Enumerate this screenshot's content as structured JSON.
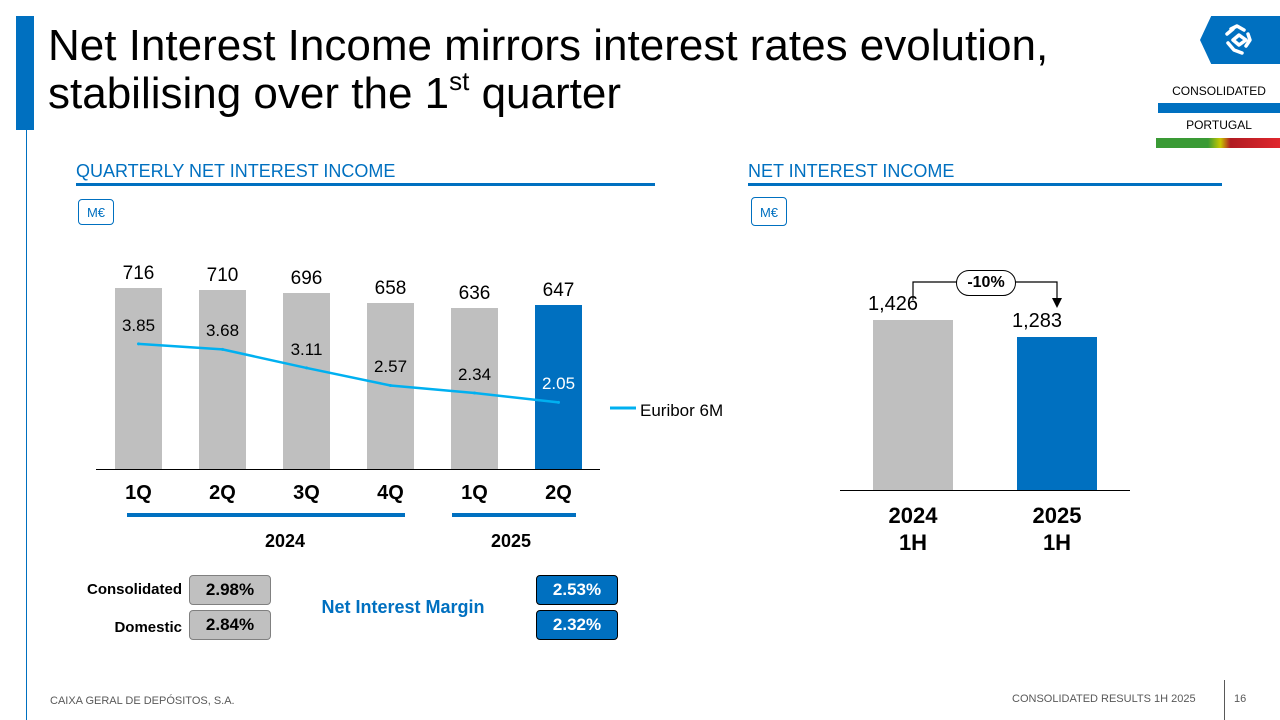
{
  "header": {
    "title_line1": "Net Interest Income mirrors interest rates evolution,",
    "title_line2_pre": "stabilising over the 1",
    "title_line2_sup": "st",
    "title_line2_post": " quarter",
    "tag_consolidated": "CONSOLIDATED",
    "tag_portugal": "PORTUGAL"
  },
  "colors": {
    "accent": "#0070c0",
    "bar_grey": "#bfbfbf",
    "euribor_line": "#00b0f0",
    "flag_green": "#3a9a35",
    "flag_red": "#e0262d"
  },
  "left_panel": {
    "title": "QUARTERLY NET INTEREST INCOME",
    "unit": "M€",
    "years": [
      "2024",
      "2025"
    ],
    "legend_euribor": "Euribor 6M"
  },
  "right_panel": {
    "title": "NET INTEREST INCOME",
    "unit": "M€",
    "change_label": "-10%"
  },
  "nim": {
    "title": "Net Interest Margin",
    "row_labels": [
      "Consolidated",
      "Domestic"
    ],
    "values_2024": [
      "2.98%",
      "2.84%"
    ],
    "values_2025": [
      "2.53%",
      "2.32%"
    ]
  },
  "footer": {
    "company": "CAIXA GERAL DE DEPÓSITOS, S.A.",
    "report": "CONSOLIDATED RESULTS 1H 2025",
    "page": "16"
  },
  "chart_data": [
    {
      "type": "bar",
      "title": "QUARTERLY NET INTEREST INCOME",
      "ylabel": "M€",
      "categories": [
        "1Q",
        "2Q",
        "3Q",
        "4Q",
        "1Q",
        "2Q"
      ],
      "groups": [
        "2024",
        "2024",
        "2024",
        "2024",
        "2025",
        "2025"
      ],
      "series": [
        {
          "name": "",
          "values": [
            716,
            710,
            696,
            658,
            636,
            647
          ],
          "labels": [
            "716",
            "710",
            "696",
            "658",
            "636",
            "647"
          ],
          "highlight_index": 5
        },
        {
          "name": "Euribor 6M",
          "type": "line",
          "values": [
            3.85,
            3.68,
            3.11,
            2.57,
            2.34,
            2.05
          ],
          "labels": [
            "3.85",
            "3.68",
            "3.11",
            "2.57",
            "2.34",
            "2.05"
          ]
        }
      ],
      "ylim": [
        0,
        760
      ],
      "line_ylim": [
        0,
        5
      ]
    },
    {
      "type": "bar",
      "title": "NET INTEREST INCOME",
      "ylabel": "M€",
      "categories": [
        [
          "2024",
          "1H"
        ],
        [
          "2025",
          "1H"
        ]
      ],
      "values": [
        1426,
        1283
      ],
      "labels": [
        "1,426",
        "1,283"
      ],
      "highlight_index": 1,
      "annotation": "-10%",
      "ylim": [
        0,
        1800
      ]
    }
  ]
}
